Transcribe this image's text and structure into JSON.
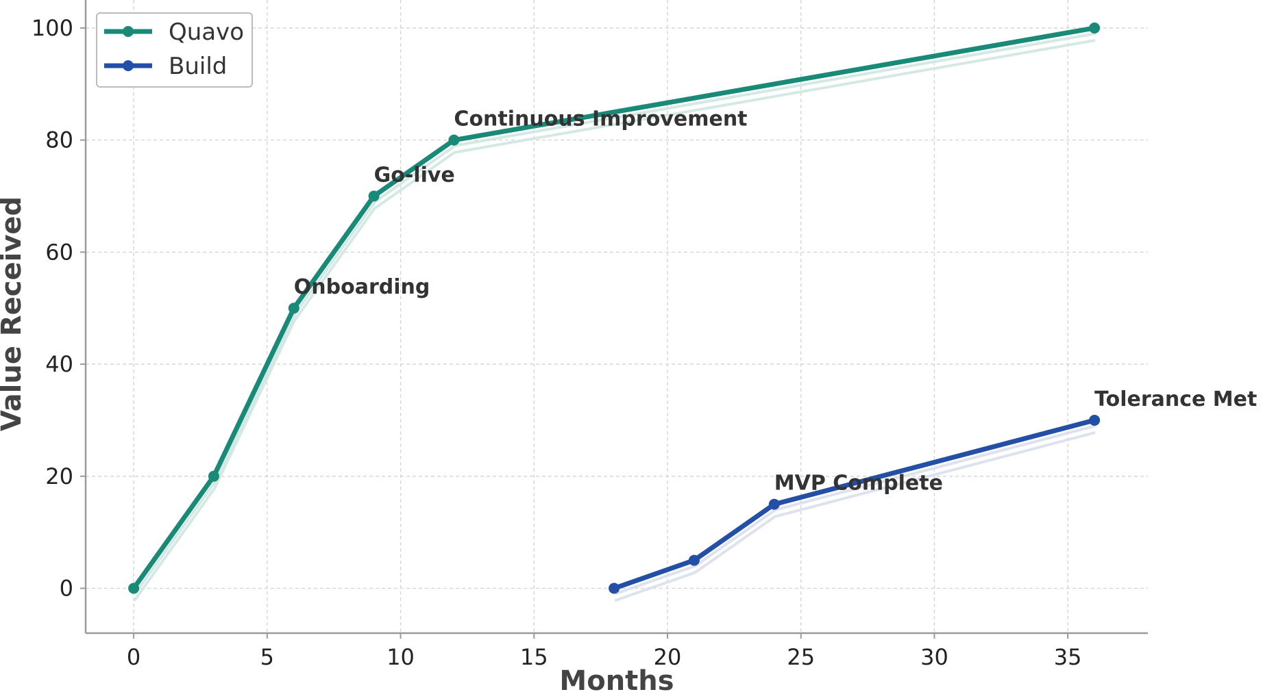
{
  "chart_data": {
    "type": "line",
    "xlabel": "Months",
    "ylabel": "Value Received",
    "xlim": [
      -1.8,
      38
    ],
    "ylim": [
      -8,
      105
    ],
    "xticks": [
      0,
      5,
      10,
      15,
      20,
      25,
      30,
      35
    ],
    "yticks": [
      0,
      20,
      40,
      60,
      80,
      100
    ],
    "grid": true,
    "legend_position": "top-left",
    "series": [
      {
        "name": "Quavo",
        "color": "#1a8a78",
        "shadow_color": "#cfe5e1",
        "x": [
          0,
          3,
          6,
          9,
          12,
          36
        ],
        "y": [
          0,
          20,
          50,
          70,
          80,
          100
        ]
      },
      {
        "name": "Build",
        "color": "#2350a6",
        "shadow_color": "#d9dfeb",
        "x": [
          18,
          21,
          24,
          36
        ],
        "y": [
          0,
          5,
          15,
          30
        ]
      }
    ],
    "annotations": [
      {
        "text": "Onboarding",
        "x": 6,
        "y": 50
      },
      {
        "text": "Go-live",
        "x": 9,
        "y": 70
      },
      {
        "text": "Continuous Improvement",
        "x": 12,
        "y": 80
      },
      {
        "text": "MVP Complete",
        "x": 24,
        "y": 15
      },
      {
        "text": "Tolerance Met",
        "x": 36,
        "y": 30
      }
    ]
  }
}
